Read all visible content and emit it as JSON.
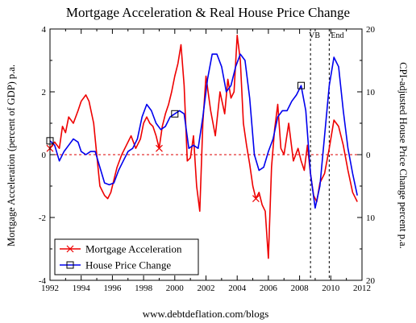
{
  "chart_data": {
    "type": "line",
    "title": "Mortgage Acceleration & Real House Price Change",
    "ylabel": "Mortgage Acceleration (percent of GDP) p.a.",
    "y2label": "CPI-adjusted House Price Change percent p.a.",
    "source": "www.debtdeflation.com/blogs",
    "xlim": [
      1992,
      2012
    ],
    "ylim": [
      -4,
      4
    ],
    "y2lim": [
      -20,
      20
    ],
    "x_ticks": [
      1992,
      1994,
      1996,
      1998,
      2000,
      2002,
      2004,
      2006,
      2008,
      2010,
      2012
    ],
    "y_ticks": [
      -4,
      -2,
      0,
      2,
      4
    ],
    "y2_ticks": [
      20,
      10,
      0,
      -10,
      -20
    ],
    "y2_tick_labels": [
      "20",
      "10",
      "0",
      "10",
      "20"
    ],
    "grid": false,
    "legend_position": "bottom-left",
    "annotations": [
      {
        "label": "VB",
        "x": 2008.7,
        "style": "dashed-vertical"
      },
      {
        "label": "End",
        "x": 2009.9,
        "style": "dashed-vertical"
      }
    ],
    "reference_line": {
      "y": 0,
      "style": "dashed",
      "color": "#dd0000"
    },
    "series": [
      {
        "name": "Mortgage Acceleration",
        "axis": "left",
        "color": "#ee0000",
        "marker": "x",
        "x": [
          1992.0,
          1992.3,
          1992.6,
          1992.8,
          1993.0,
          1993.2,
          1993.5,
          1993.8,
          1994.0,
          1994.3,
          1994.5,
          1994.8,
          1995.0,
          1995.2,
          1995.5,
          1995.7,
          1995.9,
          1996.1,
          1996.3,
          1996.6,
          1996.9,
          1997.2,
          1997.5,
          1997.8,
          1998.0,
          1998.2,
          1998.4,
          1998.6,
          1998.8,
          1999.0,
          1999.2,
          1999.4,
          1999.6,
          1999.8,
          2000.0,
          2000.2,
          2000.4,
          2000.6,
          2000.8,
          2001.0,
          2001.2,
          2001.4,
          2001.6,
          2001.8,
          2002.0,
          2002.3,
          2002.6,
          2002.9,
          2003.2,
          2003.4,
          2003.6,
          2003.8,
          2004.0,
          2004.2,
          2004.4,
          2004.6,
          2004.8,
          2005.0,
          2005.2,
          2005.4,
          2005.6,
          2005.8,
          2006.0,
          2006.2,
          2006.4,
          2006.6,
          2006.8,
          2007.0,
          2007.3,
          2007.6,
          2007.9,
          2008.1,
          2008.3,
          2008.5,
          2008.7,
          2008.9,
          2009.1,
          2009.3,
          2009.6,
          2009.9,
          2010.2,
          2010.5,
          2010.8,
          2011.1,
          2011.4,
          2011.7
        ],
        "values": [
          0.2,
          0.4,
          0.2,
          0.9,
          0.7,
          1.2,
          1.0,
          1.4,
          1.7,
          1.9,
          1.7,
          1.0,
          0.0,
          -1.0,
          -1.3,
          -1.4,
          -1.2,
          -0.8,
          -0.4,
          0.0,
          0.3,
          0.6,
          0.2,
          0.5,
          1.0,
          1.2,
          1.0,
          0.9,
          0.6,
          0.2,
          0.9,
          1.3,
          1.6,
          2.0,
          2.5,
          2.9,
          3.5,
          2.2,
          -0.2,
          -0.1,
          0.6,
          -1.0,
          -1.8,
          1.0,
          2.5,
          1.4,
          0.6,
          2.0,
          1.3,
          2.4,
          1.8,
          2.0,
          3.8,
          3.0,
          1.0,
          0.3,
          -0.3,
          -1.0,
          -1.4,
          -1.2,
          -1.6,
          -1.8,
          -3.3,
          -0.4,
          0.8,
          1.6,
          0.2,
          0.0,
          1.0,
          -0.2,
          0.2,
          -0.2,
          -0.5,
          0.3,
          -0.6,
          -1.3,
          -1.5,
          -0.9,
          -0.6,
          0.2,
          1.1,
          0.9,
          0.3,
          -0.5,
          -1.2,
          -1.5
        ]
      },
      {
        "name": "House Price Change",
        "axis": "right",
        "color": "#0000ee",
        "marker": "square",
        "x": [
          1992.0,
          1992.3,
          1992.6,
          1992.9,
          1993.2,
          1993.5,
          1993.8,
          1994.0,
          1994.3,
          1994.6,
          1994.9,
          1995.2,
          1995.5,
          1995.8,
          1996.1,
          1996.4,
          1996.7,
          1997.0,
          1997.3,
          1997.6,
          1997.9,
          1998.2,
          1998.5,
          1998.8,
          1999.1,
          1999.4,
          1999.7,
          2000.0,
          2000.3,
          2000.6,
          2000.9,
          2001.2,
          2001.5,
          2001.8,
          2002.1,
          2002.4,
          2002.7,
          2003.0,
          2003.3,
          2003.6,
          2003.9,
          2004.2,
          2004.5,
          2004.8,
          2005.1,
          2005.4,
          2005.7,
          2006.0,
          2006.3,
          2006.6,
          2006.9,
          2007.2,
          2007.5,
          2007.8,
          2008.1,
          2008.4,
          2008.7,
          2009.0,
          2009.3,
          2009.6,
          2009.9,
          2010.2,
          2010.5,
          2010.8,
          2011.1,
          2011.4,
          2011.7
        ],
        "values": [
          2.2,
          1.5,
          -1.0,
          0.5,
          1.5,
          2.5,
          2.0,
          0.5,
          0.0,
          0.5,
          0.5,
          -2.0,
          -4.5,
          -4.8,
          -4.5,
          -2.5,
          -1.0,
          0.5,
          1.0,
          2.5,
          6.0,
          8.0,
          7.0,
          5.0,
          4.0,
          4.5,
          6.0,
          6.5,
          7.0,
          6.5,
          1.0,
          1.5,
          1.0,
          6.0,
          12.0,
          16.0,
          16.0,
          14.0,
          10.0,
          11.0,
          14.0,
          16.0,
          15.0,
          9.0,
          0.0,
          -2.5,
          -2.0,
          0.5,
          2.5,
          6.0,
          7.0,
          7.0,
          8.5,
          9.5,
          11.0,
          7.0,
          -3.0,
          -8.5,
          -5.0,
          3.0,
          11.0,
          15.5,
          14.0,
          7.0,
          1.0,
          -3.0,
          -6.5
        ]
      }
    ]
  }
}
